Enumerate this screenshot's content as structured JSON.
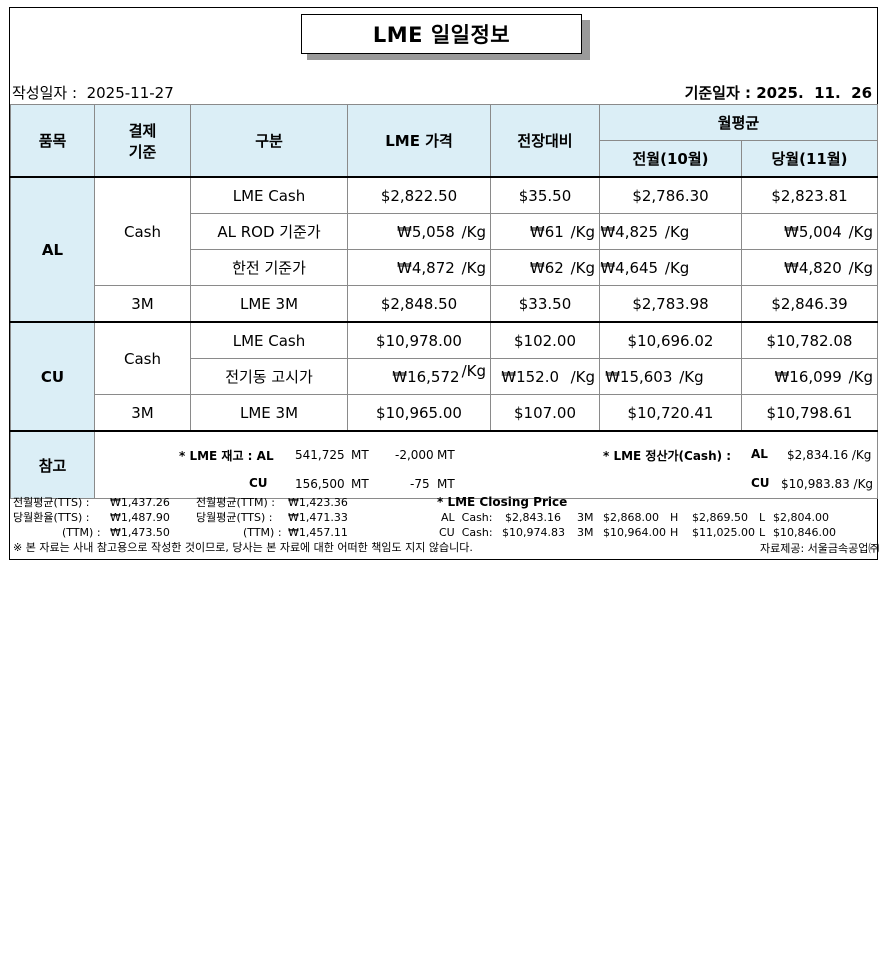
{
  "title": "LME 일일정보",
  "dates": {
    "created_label": "작성일자 :",
    "created_value": "2025-11-27",
    "base_label": "기준일자 :",
    "base_value": "2025.  11.  26"
  },
  "headers": {
    "item": "품목",
    "basis_line1": "결제",
    "basis_line2": "기준",
    "category": "구분",
    "lme_price": "LME 가격",
    "change": "전장대비",
    "monthly_avg": "월평균",
    "prev_month": "전월(10월)",
    "curr_month": "당월(11월)"
  },
  "al": {
    "name": "AL",
    "cash_label": "Cash",
    "threem_label": "3M",
    "rows": [
      {
        "label": "LME Cash",
        "price": "$2,822.50",
        "change": "$35.50",
        "prev": "$2,786.30",
        "curr": "$2,823.81"
      },
      {
        "label": "AL ROD 기준가",
        "price": "₩5,058",
        "price_unit": "/Kg",
        "change": "₩61",
        "change_unit": "/Kg",
        "prev": "₩4,825",
        "prev_unit": "/Kg",
        "curr": "₩5,004",
        "curr_unit": "/Kg"
      },
      {
        "label": "한전 기준가",
        "price": "₩4,872",
        "price_unit": "/Kg",
        "change": "₩62",
        "change_unit": "/Kg",
        "prev": "₩4,645",
        "prev_unit": "/Kg",
        "curr": "₩4,820",
        "curr_unit": "/Kg"
      },
      {
        "label": "LME  3M",
        "price": "$2,848.50",
        "change": "$33.50",
        "prev": "$2,783.98",
        "curr": "$2,846.39"
      }
    ]
  },
  "cu": {
    "name": "CU",
    "cash_label": "Cash",
    "threem_label": "3M",
    "rows": [
      {
        "label": "LME Cash",
        "price": "$10,978.00",
        "change": "$102.00",
        "prev": "$10,696.02",
        "curr": "$10,782.08"
      },
      {
        "label": "전기동 고시가",
        "price": "₩16,572",
        "price_unit": "/Kg",
        "change": "₩152.0",
        "change_unit": "/Kg",
        "prev": "₩15,603",
        "prev_unit": "/Kg",
        "curr": "₩16,099",
        "curr_unit": "/Kg"
      },
      {
        "label": "LME 3M",
        "price": "$10,965.00",
        "change": "$107.00",
        "prev": "$10,720.41",
        "curr": "$10,798.61"
      }
    ]
  },
  "reference": {
    "label": "참고",
    "stock_label": "* LME 재고 : AL",
    "al_stock": "541,725",
    "al_unit": "MT",
    "al_change": "-2,000",
    "al_change_unit": "MT",
    "cu_label": "CU",
    "cu_stock": "156,500",
    "cu_unit": "MT",
    "cu_change": "-75",
    "cu_change_unit": "MT",
    "settle_label": "* LME 정산가(Cash) :",
    "settle_al_label": "AL",
    "settle_al_value": "$2,834.16 /Kg",
    "settle_cu_label": "CU",
    "settle_cu_value": "$10,983.83 /Kg"
  },
  "footer": {
    "prev_tts_label": "전월평균(TTS) :",
    "prev_tts_value": "₩1,437.26",
    "prev_ttm_label": "전월평균(TTM) :",
    "prev_ttm_value": "₩1,423.36",
    "curr_tts_label": "당월환율(TTS) :",
    "curr_tts_value": "₩1,487.90",
    "curr_ttm_label": "당월평균(TTS) :",
    "curr_ttm_value": "₩1,471.33",
    "ttm_label": "(TTM) :",
    "ttm_value": "₩1,473.50",
    "ttm2_label": "(TTM) :",
    "ttm2_value": "₩1,457.11",
    "closing_title": "* LME Closing Price",
    "al_cash_label": "AL  Cash:",
    "al_cash_value": "$2,843.16",
    "al_3m_label": "3M",
    "al_3m_value": "$2,868.00",
    "al_h_label": "H",
    "al_h_value": "$2,869.50",
    "al_l_label": "L",
    "al_l_value": "$2,804.00",
    "cu_cash_label": "CU  Cash:",
    "cu_cash_value": "$10,974.83",
    "cu_3m_label": "3M",
    "cu_3m_value": "$10,964.00",
    "cu_h_label": "H",
    "cu_h_value": "$11,025.00",
    "cu_l_label": "L",
    "cu_l_value": "$10,846.00",
    "disclaimer": "※ 본 자료는 사내 참고용으로 작성한 것이므로, 당사는 본 자료에 대한 어떠한 책임도 지지 않습니다.",
    "source": "자료제공: 서울금속공업㈜"
  }
}
